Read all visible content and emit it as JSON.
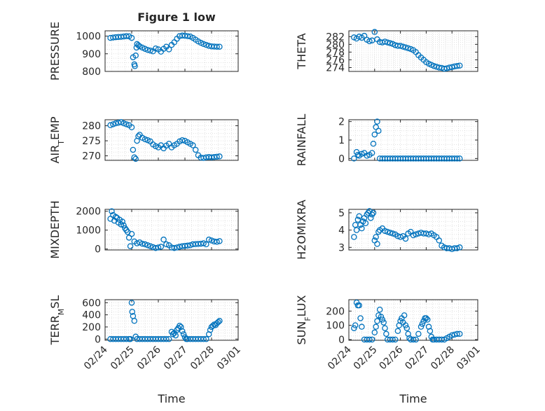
{
  "figure": {
    "title": "Figure 1 low"
  },
  "chart_data": [
    {
      "type": "scatter",
      "ylabel": "PRESSURE",
      "xlabel": "",
      "ylim": [
        800,
        1030
      ],
      "yticks": [
        "800",
        "900",
        "1000"
      ],
      "xlim": [
        "02/24",
        "03/01"
      ],
      "show_x_ticklabels": false,
      "title": "Figure 1 low",
      "grid": true,
      "marker_color": "#0072BD",
      "x_days": [
        0.2,
        0.3,
        0.4,
        0.5,
        0.6,
        0.7,
        0.8,
        0.9,
        1.0,
        1.05,
        1.1,
        1.12,
        1.15,
        1.18,
        1.2,
        1.25,
        1.3,
        1.4,
        1.5,
        1.6,
        1.7,
        1.8,
        1.9,
        2.0,
        2.1,
        2.2,
        2.3,
        2.4,
        2.5,
        2.6,
        2.7,
        2.8,
        2.9,
        3.0,
        3.1,
        3.2,
        3.3,
        3.4,
        3.5,
        3.6,
        3.7,
        3.8,
        3.9,
        4.0,
        4.1,
        4.2,
        4.3
      ],
      "values": [
        990,
        992,
        994,
        995,
        996,
        998,
        1000,
        999,
        990,
        880,
        840,
        830,
        890,
        935,
        955,
        948,
        942,
        935,
        928,
        922,
        918,
        914,
        930,
        925,
        912,
        928,
        940,
        925,
        950,
        965,
        985,
        1000,
        1003,
        1002,
        1000,
        998,
        990,
        980,
        970,
        962,
        955,
        950,
        945,
        942,
        941,
        940,
        940
      ]
    },
    {
      "type": "scatter",
      "ylabel": "THETA",
      "xlabel": "",
      "ylim": [
        273,
        283.5
      ],
      "yticks": [
        "274",
        "276",
        "278",
        "280",
        "282"
      ],
      "xlim": [
        "02/24",
        "03/01"
      ],
      "show_x_ticklabels": false,
      "grid": true,
      "marker_color": "#0072BD",
      "x_days": [
        0.2,
        0.3,
        0.4,
        0.5,
        0.6,
        0.7,
        0.8,
        0.9,
        1.0,
        1.1,
        1.2,
        1.3,
        1.4,
        1.5,
        1.6,
        1.7,
        1.8,
        1.9,
        2.0,
        2.1,
        2.2,
        2.3,
        2.4,
        2.5,
        2.6,
        2.7,
        2.8,
        2.9,
        3.0,
        3.1,
        3.2,
        3.3,
        3.4,
        3.5,
        3.6,
        3.7,
        3.8,
        3.9,
        4.0,
        4.1,
        4.2,
        4.3
      ],
      "values": [
        281.8,
        281.5,
        282.0,
        281.7,
        282.2,
        281.2,
        280.8,
        281.0,
        283.2,
        281.3,
        280.6,
        280.5,
        280.7,
        280.5,
        280.3,
        280.1,
        279.8,
        279.6,
        279.6,
        279.4,
        279.2,
        279.0,
        278.8,
        278.5,
        278.0,
        277.2,
        276.6,
        276.0,
        275.4,
        275.0,
        274.7,
        274.4,
        274.2,
        274.0,
        273.9,
        273.7,
        273.8,
        274.0,
        274.1,
        274.3,
        274.4,
        274.5
      ]
    },
    {
      "type": "scatter",
      "ylabel": "AIR_TEMP",
      "xlabel": "",
      "ylim": [
        268.5,
        282
      ],
      "yticks": [
        "270",
        "275",
        "280"
      ],
      "xlim": [
        "02/24",
        "03/01"
      ],
      "show_x_ticklabels": false,
      "grid": true,
      "marker_color": "#0072BD",
      "x_days": [
        0.2,
        0.3,
        0.4,
        0.5,
        0.6,
        0.7,
        0.8,
        0.9,
        1.0,
        1.05,
        1.1,
        1.15,
        1.2,
        1.25,
        1.3,
        1.4,
        1.5,
        1.6,
        1.7,
        1.8,
        1.9,
        2.0,
        2.1,
        2.2,
        2.3,
        2.4,
        2.5,
        2.6,
        2.7,
        2.8,
        2.9,
        3.0,
        3.1,
        3.2,
        3.3,
        3.4,
        3.5,
        3.6,
        3.7,
        3.8,
        3.9,
        4.0,
        4.1,
        4.2,
        4.3
      ],
      "values": [
        280.2,
        280.5,
        280.8,
        281.0,
        281.2,
        280.8,
        280.5,
        280.2,
        279.5,
        272.0,
        269.5,
        269.0,
        275.0,
        276.5,
        277.0,
        276.0,
        275.5,
        275.2,
        274.8,
        273.8,
        273.2,
        272.8,
        273.5,
        272.5,
        273.4,
        274.0,
        272.8,
        273.5,
        274.0,
        274.8,
        275.2,
        275.0,
        274.5,
        274.0,
        273.5,
        272.0,
        270.2,
        269.4,
        269.3,
        269.5,
        269.6,
        269.5,
        269.6,
        269.7,
        269.8
      ]
    },
    {
      "type": "scatter",
      "ylabel": "RAINFALL",
      "xlabel": "",
      "ylim": [
        -0.1,
        2.1
      ],
      "yticks": [
        "0",
        "1",
        "2"
      ],
      "xlim": [
        "02/24",
        "03/01"
      ],
      "show_x_ticklabels": false,
      "grid": true,
      "marker_color": "#0072BD",
      "x_days": [
        0.2,
        0.3,
        0.35,
        0.4,
        0.5,
        0.6,
        0.7,
        0.8,
        0.9,
        0.95,
        1.0,
        1.05,
        1.1,
        1.15,
        1.2,
        1.3,
        1.4,
        1.5,
        1.6,
        1.7,
        1.8,
        1.9,
        2.0,
        2.1,
        2.2,
        2.3,
        2.4,
        2.5,
        2.6,
        2.7,
        2.8,
        2.9,
        3.0,
        3.1,
        3.2,
        3.3,
        3.4,
        3.5,
        3.6,
        3.7,
        3.8,
        3.9,
        4.0,
        4.1,
        4.2,
        4.3
      ],
      "values": [
        0,
        0.35,
        0.2,
        0.15,
        0.25,
        0.3,
        0.15,
        0.2,
        0.3,
        0.8,
        1.3,
        1.7,
        2.0,
        1.5,
        0,
        0,
        0,
        0,
        0,
        0,
        0,
        0,
        0,
        0,
        0,
        0,
        0,
        0,
        0,
        0,
        0,
        0,
        0,
        0,
        0,
        0,
        0,
        0,
        0,
        0,
        0,
        0,
        0,
        0,
        0,
        0
      ]
    },
    {
      "type": "scatter",
      "ylabel": "MIXDEPTH",
      "xlabel": "",
      "ylim": [
        -50,
        2100
      ],
      "yticks": [
        "0",
        "1000",
        "2000"
      ],
      "xlim": [
        "02/24",
        "03/01"
      ],
      "show_x_ticklabels": false,
      "grid": true,
      "marker_color": "#0072BD",
      "x_days": [
        0.2,
        0.25,
        0.3,
        0.35,
        0.4,
        0.45,
        0.5,
        0.55,
        0.6,
        0.65,
        0.7,
        0.75,
        0.8,
        0.85,
        0.9,
        0.95,
        1.0,
        1.1,
        1.2,
        1.3,
        1.4,
        1.5,
        1.6,
        1.7,
        1.8,
        1.9,
        2.0,
        2.1,
        2.2,
        2.3,
        2.4,
        2.5,
        2.6,
        2.7,
        2.8,
        2.9,
        3.0,
        3.1,
        3.2,
        3.3,
        3.4,
        3.5,
        3.6,
        3.7,
        3.8,
        3.9,
        4.0,
        4.1,
        4.2,
        4.3
      ],
      "values": [
        1600,
        2000,
        1800,
        1500,
        1700,
        1650,
        1400,
        1550,
        1300,
        1450,
        1250,
        1100,
        1000,
        900,
        600,
        150,
        800,
        400,
        300,
        350,
        280,
        250,
        200,
        150,
        100,
        50,
        80,
        120,
        500,
        250,
        200,
        80,
        50,
        80,
        120,
        150,
        170,
        180,
        200,
        250,
        260,
        270,
        280,
        300,
        250,
        500,
        450,
        400,
        380,
        420
      ]
    },
    {
      "type": "scatter",
      "ylabel": "H2OMIXRA",
      "xlabel": "",
      "ylim": [
        2.85,
        5.2
      ],
      "yticks": [
        "3",
        "4",
        "5"
      ],
      "xlim": [
        "02/24",
        "03/01"
      ],
      "show_x_ticklabels": false,
      "grid": true,
      "marker_color": "#0072BD",
      "x_days": [
        0.2,
        0.25,
        0.3,
        0.35,
        0.4,
        0.45,
        0.5,
        0.55,
        0.6,
        0.65,
        0.7,
        0.75,
        0.8,
        0.85,
        0.9,
        0.95,
        1.0,
        1.05,
        1.1,
        1.15,
        1.2,
        1.3,
        1.4,
        1.5,
        1.6,
        1.7,
        1.8,
        1.9,
        2.0,
        2.1,
        2.2,
        2.3,
        2.4,
        2.5,
        2.6,
        2.7,
        2.8,
        2.9,
        3.0,
        3.1,
        3.2,
        3.3,
        3.4,
        3.5,
        3.6,
        3.7,
        3.8,
        3.9,
        4.0,
        4.1,
        4.2,
        4.3
      ],
      "values": [
        3.6,
        4.3,
        4.0,
        4.6,
        4.8,
        4.3,
        4.1,
        4.5,
        4.7,
        4.4,
        4.9,
        5.0,
        5.1,
        4.7,
        4.9,
        5.0,
        3.4,
        3.6,
        3.2,
        3.9,
        4.0,
        4.1,
        3.95,
        3.9,
        3.85,
        3.8,
        3.75,
        3.65,
        3.6,
        3.65,
        3.5,
        3.8,
        3.9,
        3.7,
        3.75,
        3.8,
        3.85,
        3.8,
        3.8,
        3.75,
        3.8,
        3.7,
        3.6,
        3.4,
        3.1,
        3.0,
        2.95,
        2.95,
        2.9,
        2.95,
        2.95,
        3.0
      ]
    },
    {
      "type": "scatter",
      "ylabel": "TERR_MSL",
      "xlabel": "Time",
      "ylim": [
        -20,
        650
      ],
      "yticks": [
        "0",
        "200",
        "400",
        "600"
      ],
      "xlim": [
        "02/24",
        "03/01"
      ],
      "xticks": [
        "02/24",
        "02/25",
        "02/26",
        "02/27",
        "02/28",
        "03/01"
      ],
      "show_x_ticklabels": true,
      "grid": true,
      "marker_color": "#0072BD",
      "x_days": [
        0.2,
        0.3,
        0.4,
        0.5,
        0.6,
        0.7,
        0.8,
        0.9,
        0.95,
        1.0,
        1.02,
        1.05,
        1.1,
        1.15,
        1.2,
        1.3,
        1.4,
        1.5,
        1.6,
        1.7,
        1.8,
        1.9,
        2.0,
        2.1,
        2.2,
        2.3,
        2.4,
        2.5,
        2.55,
        2.6,
        2.65,
        2.7,
        2.75,
        2.8,
        2.85,
        2.9,
        2.95,
        3.0,
        3.05,
        3.1,
        3.2,
        3.3,
        3.4,
        3.5,
        3.6,
        3.7,
        3.8,
        3.9,
        3.95,
        4.0,
        4.05,
        4.1,
        4.15,
        4.2,
        4.25,
        4.3
      ],
      "values": [
        0,
        0,
        0,
        0,
        0,
        0,
        0,
        0,
        0,
        600,
        450,
        380,
        300,
        40,
        0,
        0,
        0,
        0,
        0,
        0,
        0,
        0,
        0,
        0,
        0,
        0,
        0,
        120,
        80,
        100,
        60,
        150,
        180,
        220,
        200,
        130,
        80,
        30,
        0,
        0,
        0,
        0,
        0,
        0,
        0,
        0,
        0,
        80,
        150,
        200,
        220,
        240,
        230,
        260,
        280,
        300
      ]
    },
    {
      "type": "scatter",
      "ylabel": "SUN_FLUX",
      "xlabel": "Time",
      "ylim": [
        -5,
        280
      ],
      "yticks": [
        "0",
        "100",
        "200"
      ],
      "xlim": [
        "02/24",
        "03/01"
      ],
      "xticks": [
        "02/24",
        "02/25",
        "02/26",
        "02/27",
        "02/28",
        "03/01"
      ],
      "show_x_ticklabels": true,
      "grid": true,
      "marker_color": "#0072BD",
      "x_days": [
        0.2,
        0.25,
        0.3,
        0.35,
        0.4,
        0.45,
        0.5,
        0.6,
        0.7,
        0.8,
        0.9,
        1.0,
        1.05,
        1.1,
        1.15,
        1.2,
        1.25,
        1.3,
        1.35,
        1.4,
        1.45,
        1.5,
        1.6,
        1.7,
        1.8,
        1.9,
        1.95,
        2.0,
        2.05,
        2.1,
        2.15,
        2.2,
        2.25,
        2.3,
        2.35,
        2.4,
        2.5,
        2.6,
        2.7,
        2.8,
        2.85,
        2.9,
        2.95,
        3.0,
        3.05,
        3.1,
        3.15,
        3.2,
        3.25,
        3.3,
        3.4,
        3.5,
        3.6,
        3.7,
        3.8,
        3.9,
        4.0,
        4.1,
        4.2,
        4.3
      ],
      "values": [
        80,
        100,
        260,
        240,
        240,
        150,
        90,
        0,
        0,
        0,
        0,
        50,
        90,
        130,
        170,
        210,
        160,
        140,
        120,
        80,
        40,
        0,
        0,
        0,
        0,
        60,
        100,
        130,
        150,
        120,
        170,
        100,
        80,
        40,
        10,
        0,
        0,
        0,
        40,
        90,
        110,
        130,
        150,
        150,
        140,
        90,
        60,
        20,
        0,
        0,
        0,
        0,
        0,
        0,
        10,
        20,
        30,
        35,
        40,
        40
      ]
    }
  ]
}
